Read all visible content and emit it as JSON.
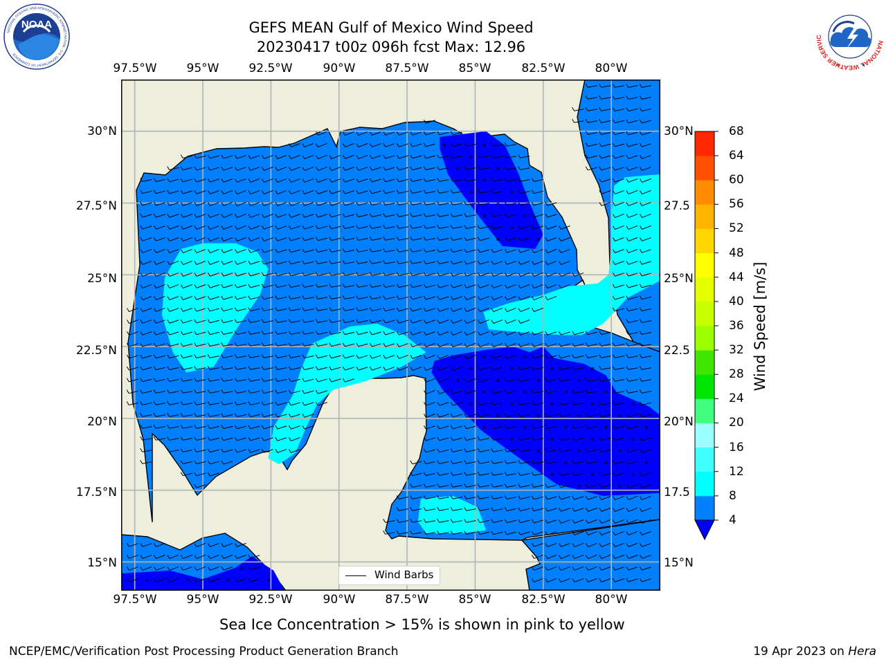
{
  "title": {
    "line1": "GEFS MEAN Gulf of Mexico Wind Speed",
    "line2": "20230417 t00z 096h fcst   Max: 12.96"
  },
  "logos": {
    "left": {
      "name": "noaa-logo",
      "text": "NOAA",
      "ring_text": "NATIONAL OCEANIC AND ATMOSPHERIC ADMINISTRATION · U.S. DEPARTMENT OF COMMERCE"
    },
    "right": {
      "name": "nws-logo",
      "ring_text": "NATIONAL WEATHER SERVICE"
    }
  },
  "map": {
    "projection": "lat-lon",
    "lon_range": [
      -98.0,
      -78.2
    ],
    "lat_range": [
      14.0,
      31.8
    ],
    "lon_ticks": [
      "97.5°W",
      "95°W",
      "92.5°W",
      "90°W",
      "87.5°W",
      "85°W",
      "82.5°W",
      "80°W"
    ],
    "lat_ticks": [
      "30°N",
      "27.5°N",
      "25°N",
      "22.5°N",
      "20°N",
      "17.5°N",
      "15°N"
    ],
    "lat_ticks_right": [
      "30°N",
      "27.5",
      "25°N",
      "22.5",
      "20°N",
      "17.5",
      "15°N"
    ],
    "grid": true,
    "land_color": "#eeeedc",
    "grid_color": "#b4b4b4"
  },
  "legend": {
    "label": "Wind Barbs",
    "placement": "lower-center"
  },
  "colorbar": {
    "title": "Wind Speed [m/s]",
    "levels": [
      "4",
      "8",
      "12",
      "16",
      "20",
      "24",
      "28",
      "32",
      "36",
      "40",
      "44",
      "48",
      "52",
      "56",
      "60",
      "64",
      "68"
    ],
    "colors": [
      "#0080ff",
      "#00ffff",
      "#40ffff",
      "#9bffff",
      "#40ff80",
      "#00e600",
      "#40e600",
      "#9bff00",
      "#c8ff00",
      "#e6ff00",
      "#ffff00",
      "#ffd700",
      "#ffb400",
      "#ff8c00",
      "#ff5000",
      "#ff2800"
    ],
    "extend_low_color": "#0000ff"
  },
  "caption": "Sea Ice Concentration > 15% is shown in pink to yellow",
  "footer": {
    "left": "NCEP/EMC/Verification Post Processing Product Generation Branch",
    "right_date": "19 Apr 2023 on ",
    "right_machine": "Hera"
  },
  "chart_data": {
    "type": "heatmap",
    "variable": "Wind Speed",
    "units": "m/s",
    "max": 12.96,
    "levels": [
      4,
      8,
      12,
      16,
      20,
      24,
      28,
      32,
      36,
      40,
      44,
      48,
      52,
      56,
      60,
      64,
      68
    ],
    "base_category": "4-8",
    "regions": [
      {
        "category": "<4",
        "polygon": [
          [
            -86.3,
            29.8
          ],
          [
            -84.6,
            30.0
          ],
          [
            -83.9,
            29.5
          ],
          [
            -83.4,
            28.5
          ],
          [
            -83.0,
            27.5
          ],
          [
            -82.5,
            26.4
          ],
          [
            -82.8,
            25.9
          ],
          [
            -84.0,
            26.0
          ],
          [
            -85.0,
            27.2
          ],
          [
            -86.0,
            28.5
          ],
          [
            -86.3,
            29.4
          ]
        ]
      },
      {
        "category": "<4",
        "polygon": [
          [
            -86.5,
            22.0
          ],
          [
            -85.8,
            22.2
          ],
          [
            -84.5,
            22.4
          ],
          [
            -83.6,
            22.5
          ],
          [
            -83.0,
            22.3
          ],
          [
            -82.5,
            22.5
          ],
          [
            -82.1,
            22.1
          ],
          [
            -81.0,
            21.9
          ],
          [
            -80.2,
            21.5
          ],
          [
            -79.8,
            20.9
          ],
          [
            -78.6,
            20.4
          ],
          [
            -78.2,
            20.1
          ],
          [
            -78.2,
            17.4
          ],
          [
            -80.3,
            17.3
          ],
          [
            -82.0,
            17.7
          ],
          [
            -83.5,
            18.7
          ],
          [
            -84.8,
            19.6
          ],
          [
            -85.5,
            20.3
          ],
          [
            -86.2,
            21.0
          ],
          [
            -86.6,
            21.6
          ]
        ]
      },
      {
        "category": "<4",
        "polygon": [
          [
            -98.0,
            14.6
          ],
          [
            -96.2,
            14.7
          ],
          [
            -95.0,
            14.4
          ],
          [
            -93.8,
            14.8
          ],
          [
            -93.2,
            15.2
          ],
          [
            -92.4,
            14.7
          ],
          [
            -92.0,
            14.0
          ],
          [
            -98.0,
            14.0
          ]
        ]
      },
      {
        "category": "8-12",
        "polygon": [
          [
            -96.4,
            24.9
          ],
          [
            -95.8,
            25.9
          ],
          [
            -95.0,
            26.1
          ],
          [
            -93.8,
            26.1
          ],
          [
            -93.0,
            25.8
          ],
          [
            -92.6,
            25.2
          ],
          [
            -92.9,
            24.3
          ],
          [
            -93.7,
            23.2
          ],
          [
            -94.6,
            21.8
          ],
          [
            -95.6,
            21.6
          ],
          [
            -96.1,
            22.3
          ],
          [
            -96.5,
            23.6
          ]
        ]
      },
      {
        "category": "8-12",
        "polygon": [
          [
            -91.0,
            22.6
          ],
          [
            -89.6,
            23.2
          ],
          [
            -88.6,
            23.3
          ],
          [
            -87.6,
            22.9
          ],
          [
            -86.8,
            22.3
          ],
          [
            -87.7,
            21.8
          ],
          [
            -89.0,
            21.3
          ],
          [
            -90.2,
            21.0
          ],
          [
            -90.8,
            20.5
          ],
          [
            -91.2,
            19.7
          ],
          [
            -91.6,
            18.8
          ],
          [
            -92.2,
            18.4
          ],
          [
            -92.6,
            18.6
          ],
          [
            -92.4,
            19.7
          ],
          [
            -91.7,
            20.8
          ],
          [
            -91.4,
            21.7
          ]
        ]
      },
      {
        "category": "8-12",
        "polygon": [
          [
            -79.9,
            28.1
          ],
          [
            -79.5,
            28.4
          ],
          [
            -78.2,
            28.5
          ],
          [
            -78.2,
            24.8
          ],
          [
            -79.4,
            24.2
          ],
          [
            -80.3,
            23.3
          ],
          [
            -81.1,
            22.9
          ],
          [
            -81.8,
            22.9
          ],
          [
            -83.4,
            23.0
          ],
          [
            -84.5,
            23.1
          ],
          [
            -84.7,
            23.7
          ],
          [
            -83.8,
            24.0
          ],
          [
            -82.5,
            24.3
          ],
          [
            -81.6,
            24.6
          ],
          [
            -80.5,
            24.7
          ],
          [
            -80.1,
            25.0
          ],
          [
            -80.0,
            26.0
          ],
          [
            -80.0,
            27.0
          ]
        ]
      },
      {
        "category": "8-12",
        "polygon": [
          [
            -87.0,
            17.2
          ],
          [
            -85.8,
            17.3
          ],
          [
            -84.9,
            16.9
          ],
          [
            -84.6,
            16.1
          ],
          [
            -85.5,
            16.0
          ],
          [
            -86.8,
            16.0
          ],
          [
            -87.1,
            16.4
          ]
        ]
      }
    ]
  }
}
